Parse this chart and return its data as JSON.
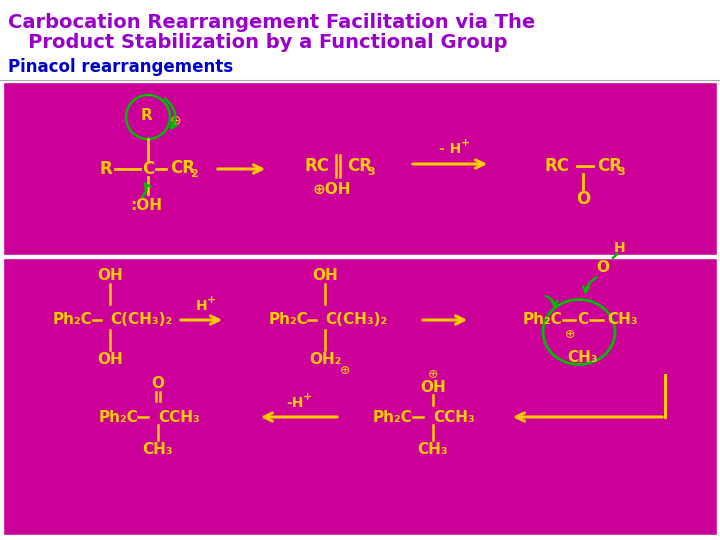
{
  "title_line1": "Carbocation Rearrangement Facilitation via The",
  "title_line2": "   Product Stabilization by a Functional Group",
  "subtitle": "Pinacol rearrangements",
  "title_color": "#9900CC",
  "subtitle_color": "#0000CC",
  "magenta": "#CC0099",
  "yellow": "#FFCC00",
  "green": "#00BB00",
  "white": "#FFFFFF",
  "fig_bg": "#FFFFFF"
}
